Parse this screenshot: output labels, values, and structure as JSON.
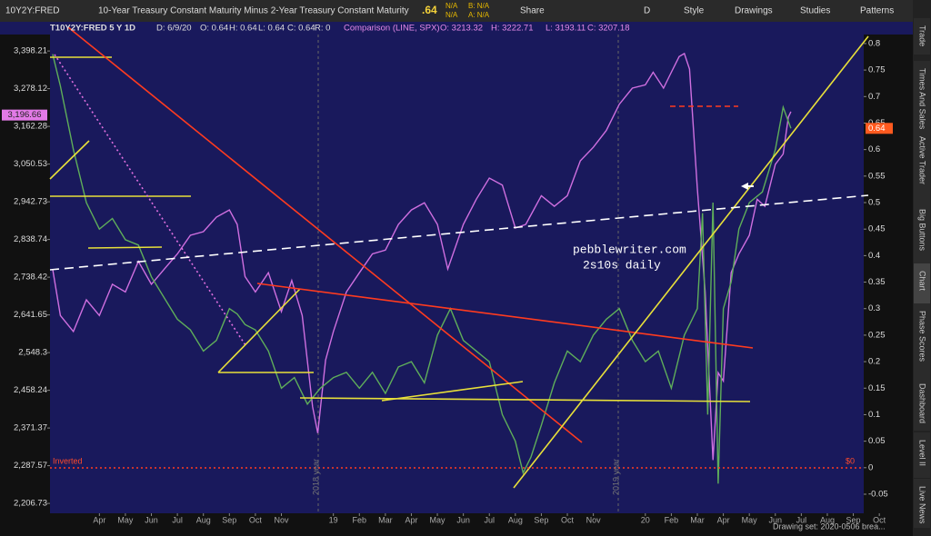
{
  "ui": {
    "symbol": "10Y2Y:FRED",
    "description": "10-Year Treasury Constant Maturity Minus 2-Year Treasury Constant Maturity",
    "last": ".64",
    "na1": "N/A",
    "na2": "N/A",
    "bid": "B: N/A",
    "ask": "A: N/A",
    "share": "Share",
    "period": "D",
    "style": "Style",
    "drawings": "Drawings",
    "studies": "Studies",
    "patterns": "Patterns",
    "info": [
      "T10Y2Y:FRED 5 Y 1D",
      "D: 6/9/20",
      "O: 0.64",
      "H: 0.64",
      "L: 0.64",
      "C: 0.64",
      "R: 0",
      "Comparison (LINE, SPX)",
      "O: 3213.32",
      "H: 3222.71",
      "L: 3193.11",
      "C: 3207.18"
    ],
    "tabs": [
      "Trade",
      "Times And Sales",
      "Active Trader",
      "Big Buttons",
      "Chart",
      "Phase Scores",
      "Dashboard",
      "Level II",
      "Live News"
    ],
    "drawing_set": "Drawing set: 2020-0506 brea..."
  },
  "chart_data": {
    "type": "line",
    "log_y": true,
    "annotations": [
      "pebblewriter.com",
      "2s10s daily",
      "Inverted",
      "$0",
      "2018 year",
      "2019 year"
    ],
    "xlim": [
      -0.9,
      30.4
    ],
    "xticks": [
      {
        "value": 1,
        "label": "Apr"
      },
      {
        "value": 2,
        "label": "May"
      },
      {
        "value": 3,
        "label": "Jun"
      },
      {
        "value": 4,
        "label": "Jul"
      },
      {
        "value": 5,
        "label": "Aug"
      },
      {
        "value": 6,
        "label": "Sep"
      },
      {
        "value": 7,
        "label": "Oct"
      },
      {
        "value": 8,
        "label": "Nov"
      },
      {
        "value": 10,
        "label": "19"
      },
      {
        "value": 11,
        "label": "Feb"
      },
      {
        "value": 12,
        "label": "Mar"
      },
      {
        "value": 13,
        "label": "Apr"
      },
      {
        "value": 14,
        "label": "May"
      },
      {
        "value": 15,
        "label": "Jun"
      },
      {
        "value": 16,
        "label": "Jul"
      },
      {
        "value": 17,
        "label": "Aug"
      },
      {
        "value": 18,
        "label": "Sep"
      },
      {
        "value": 19,
        "label": "Oct"
      },
      {
        "value": 20,
        "label": "Nov"
      },
      {
        "value": 22,
        "label": "20"
      },
      {
        "value": 23,
        "label": "Feb"
      },
      {
        "value": 24,
        "label": "Mar"
      },
      {
        "value": 25,
        "label": "Apr"
      },
      {
        "value": 26,
        "label": "May"
      },
      {
        "value": 27,
        "label": "Jun"
      },
      {
        "value": 28,
        "label": "Jul"
      },
      {
        "value": 29,
        "label": "Aug"
      },
      {
        "value": 30,
        "label": "Sep"
      },
      {
        "value": 31,
        "label": "Oct"
      }
    ],
    "ylim": [
      2186,
      3452
    ],
    "yticks": [
      {
        "value": 3398.21,
        "label": "3,398.21"
      },
      {
        "value": 3278.12,
        "label": "3,278.12"
      },
      {
        "value": 3162.28,
        "label": "3,162.28"
      },
      {
        "value": 3050.53,
        "label": "3,050.53"
      },
      {
        "value": 2942.73,
        "label": "2,942.73"
      },
      {
        "value": 2838.74,
        "label": "2,838.74"
      },
      {
        "value": 2738.42,
        "label": "2,738.42"
      },
      {
        "value": 2641.65,
        "label": "2,641.65"
      },
      {
        "value": 2548.3,
        "label": "2,548.3"
      },
      {
        "value": 2458.24,
        "label": "2,458.24"
      },
      {
        "value": 2371.37,
        "label": "2,371.37"
      },
      {
        "value": 2287.57,
        "label": "2,287.57"
      },
      {
        "value": 2206.73,
        "label": "2,206.73"
      }
    ],
    "y2lim": [
      -0.086,
      0.817
    ],
    "y2ticks": [
      0.8,
      0.75,
      0.7,
      0.65,
      0.6,
      0.55,
      0.5,
      0.45,
      0.4,
      0.35,
      0.3,
      0.25,
      0.2,
      0.15,
      0.1,
      0.05,
      0,
      -0.05
    ],
    "y_marker": {
      "value": 3196.66,
      "label": "3,196.66"
    },
    "y2_marker": 0.64,
    "series": [
      {
        "name": "SPX",
        "color": "#cf6fe0",
        "x": [
          -0.8,
          -0.5,
          0,
          0.5,
          1,
          1.5,
          2,
          2.5,
          3,
          3.5,
          4,
          4.5,
          5,
          5.5,
          6,
          6.3,
          6.6,
          7,
          7.5,
          8,
          8.4,
          8.8,
          9.2,
          9.4,
          9.7,
          10,
          10.5,
          11,
          11.5,
          12,
          12.5,
          13,
          13.5,
          14,
          14.4,
          15,
          15.5,
          16,
          16.5,
          17,
          17.4,
          18,
          18.5,
          19,
          19.5,
          20,
          20.5,
          21,
          21.5,
          22,
          22.3,
          22.7,
          23,
          23.3,
          23.5,
          23.7,
          24,
          24.3,
          24.6,
          24.8,
          25,
          25.3,
          25.6,
          26,
          26.3,
          26.6,
          27,
          27.3,
          27.5,
          27.6
        ],
        "values": [
          2760,
          2640,
          2600,
          2680,
          2640,
          2720,
          2700,
          2780,
          2720,
          2760,
          2800,
          2850,
          2860,
          2900,
          2920,
          2880,
          2740,
          2700,
          2750,
          2650,
          2730,
          2640,
          2420,
          2360,
          2530,
          2600,
          2700,
          2750,
          2800,
          2810,
          2880,
          2920,
          2940,
          2880,
          2760,
          2880,
          2950,
          3010,
          2990,
          2870,
          2880,
          2960,
          2930,
          2960,
          3060,
          3100,
          3150,
          3230,
          3280,
          3290,
          3330,
          3280,
          3330,
          3380,
          3390,
          3340,
          2980,
          2700,
          2300,
          2500,
          2480,
          2750,
          2800,
          2850,
          2950,
          2930,
          3050,
          3080,
          3190,
          3207
        ]
      },
      {
        "name": "T10Y2Y",
        "color": "#5fae5a",
        "axis": "y2",
        "x": [
          -0.8,
          -0.5,
          0,
          0.5,
          1,
          1.5,
          2,
          2.5,
          3,
          3.5,
          4,
          4.5,
          5,
          5.5,
          6,
          6.3,
          6.6,
          7,
          7.5,
          8,
          8.5,
          9,
          9.5,
          10,
          10.5,
          11,
          11.5,
          12,
          12.5,
          13,
          13.5,
          14,
          14.5,
          15,
          15.5,
          16,
          16.5,
          17,
          17.3,
          17.6,
          18,
          18.5,
          19,
          19.5,
          20,
          20.5,
          21,
          21.5,
          22,
          22.5,
          23,
          23.5,
          23.8,
          24,
          24.2,
          24.4,
          24.6,
          24.8,
          25,
          25.3,
          25.6,
          26,
          26.5,
          27,
          27.3,
          27.6
        ],
        "values": [
          0.78,
          0.72,
          0.6,
          0.5,
          0.45,
          0.47,
          0.43,
          0.42,
          0.36,
          0.32,
          0.28,
          0.26,
          0.22,
          0.24,
          0.3,
          0.29,
          0.27,
          0.26,
          0.22,
          0.15,
          0.17,
          0.12,
          0.15,
          0.17,
          0.18,
          0.15,
          0.18,
          0.14,
          0.19,
          0.2,
          0.16,
          0.25,
          0.3,
          0.24,
          0.22,
          0.2,
          0.1,
          0.05,
          -0.01,
          0.02,
          0.08,
          0.16,
          0.22,
          0.2,
          0.25,
          0.28,
          0.3,
          0.24,
          0.2,
          0.22,
          0.15,
          0.25,
          0.28,
          0.3,
          0.48,
          0.1,
          0.5,
          -0.03,
          0.3,
          0.35,
          0.45,
          0.5,
          0.52,
          0.6,
          0.68,
          0.64
        ]
      }
    ]
  }
}
